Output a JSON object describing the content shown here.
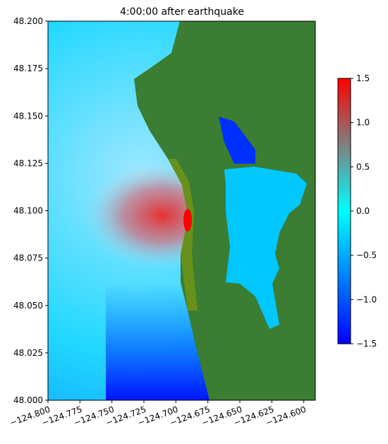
{
  "chart_data": {
    "type": "image",
    "title": "4:00:00 after earthquake",
    "xlim": [
      -124.8,
      -124.591
    ],
    "ylim": [
      48.0,
      48.2
    ],
    "xticks": [
      {
        "value": -124.8,
        "label": "−124.800"
      },
      {
        "value": -124.775,
        "label": "−124.775"
      },
      {
        "value": -124.75,
        "label": "−124.750"
      },
      {
        "value": -124.725,
        "label": "−124.725"
      },
      {
        "value": -124.7,
        "label": "−124.700"
      },
      {
        "value": -124.675,
        "label": "−124.675"
      },
      {
        "value": -124.65,
        "label": "−124.650"
      },
      {
        "value": -124.625,
        "label": "−124.625"
      },
      {
        "value": -124.6,
        "label": "−124.600"
      }
    ],
    "yticks": [
      {
        "value": 48.0,
        "label": "48.000"
      },
      48.025,
      {
        "value": 48.05,
        "label": "48.050"
      },
      48.075,
      {
        "value": 48.1,
        "label": "48.100"
      },
      48.125,
      {
        "value": 48.15,
        "label": "48.150"
      },
      48.175,
      {
        "value": 48.2,
        "label": "48.200"
      }
    ],
    "colorbar": {
      "lim": [
        -1.5,
        1.5
      ],
      "colors": [
        "#0000ff",
        "#00ffff",
        "#ff0000"
      ],
      "ticks": [
        {
          "value": -1.5,
          "label": "−1.5"
        },
        {
          "value": -1.0,
          "label": "−1.0"
        },
        {
          "value": -0.5,
          "label": "−0.5"
        },
        {
          "value": 0.0,
          "label": "0.0"
        },
        0.5,
        {
          "value": 1.0,
          "label": "1.0"
        },
        1.5
      ]
    }
  }
}
